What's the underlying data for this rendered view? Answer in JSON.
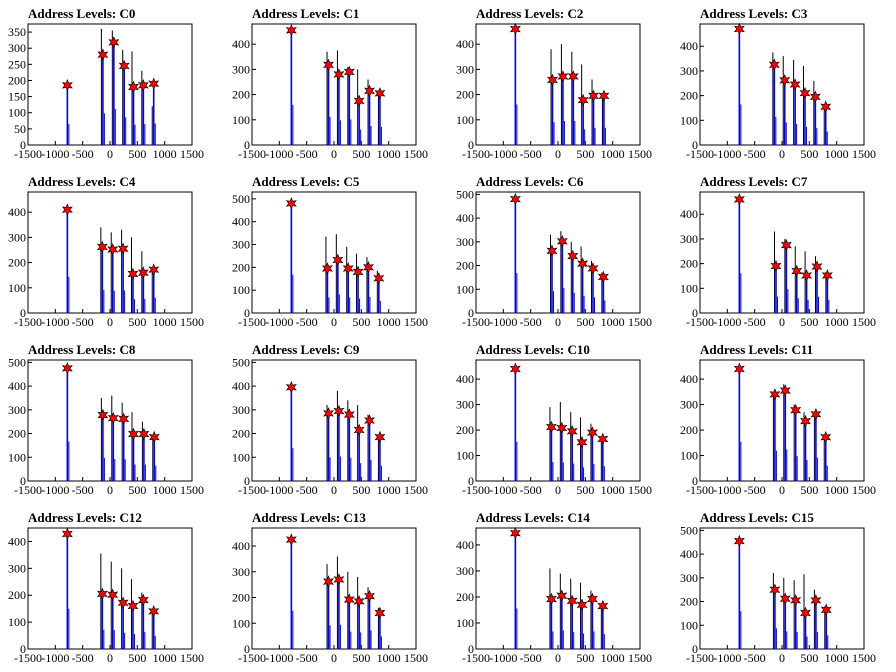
{
  "colors": {
    "peak": "#0000ff",
    "black_peak": "#000000",
    "marker": "#ff0000",
    "frame": "#000000"
  },
  "chart_data": [
    {
      "type": "bar",
      "title": "Address Levels: C0",
      "xlim": [
        -1500,
        1500
      ],
      "ylim": [
        0,
        375
      ],
      "xticks": [
        -1500,
        -1000,
        -500,
        0,
        500,
        1000,
        1500
      ],
      "yticks": [
        0,
        50,
        100,
        150,
        200,
        250,
        300,
        350
      ],
      "markers": [
        {
          "x": -780,
          "y": 185
        },
        {
          "x": -130,
          "y": 280
        },
        {
          "x": 70,
          "y": 318
        },
        {
          "x": 260,
          "y": 245
        },
        {
          "x": 430,
          "y": 180
        },
        {
          "x": 610,
          "y": 185
        },
        {
          "x": 800,
          "y": 190
        }
      ],
      "black_peaks": [
        {
          "x": -130,
          "y": 360
        },
        {
          "x": 70,
          "y": 355
        },
        {
          "x": 260,
          "y": 295
        },
        {
          "x": 430,
          "y": 290
        },
        {
          "x": 610,
          "y": 230
        },
        {
          "x": 800,
          "y": 120
        }
      ]
    },
    {
      "type": "bar",
      "title": "Address Levels: C1",
      "xlim": [
        -1500,
        1500
      ],
      "ylim": [
        0,
        480
      ],
      "xticks": [
        -1500,
        -1000,
        -500,
        0,
        500,
        1000,
        1500
      ],
      "yticks": [
        0,
        100,
        200,
        300,
        400
      ],
      "markers": [
        {
          "x": -780,
          "y": 455
        },
        {
          "x": -100,
          "y": 318
        },
        {
          "x": 90,
          "y": 280
        },
        {
          "x": 280,
          "y": 290
        },
        {
          "x": 460,
          "y": 175
        },
        {
          "x": 650,
          "y": 215
        },
        {
          "x": 840,
          "y": 205
        }
      ],
      "black_peaks": [
        {
          "x": -100,
          "y": 370
        },
        {
          "x": 90,
          "y": 375
        },
        {
          "x": 280,
          "y": 310
        },
        {
          "x": 460,
          "y": 300
        },
        {
          "x": 650,
          "y": 260
        },
        {
          "x": 840,
          "y": 210
        }
      ]
    },
    {
      "type": "bar",
      "title": "Address Levels: C2",
      "xlim": [
        -1500,
        1500
      ],
      "ylim": [
        0,
        480
      ],
      "xticks": [
        -1500,
        -1000,
        -500,
        0,
        500,
        1000,
        1500
      ],
      "yticks": [
        0,
        100,
        200,
        300,
        400
      ],
      "markers": [
        {
          "x": -780,
          "y": 460
        },
        {
          "x": -100,
          "y": 258
        },
        {
          "x": 90,
          "y": 272
        },
        {
          "x": 280,
          "y": 272
        },
        {
          "x": 460,
          "y": 178
        },
        {
          "x": 650,
          "y": 195
        },
        {
          "x": 840,
          "y": 195
        }
      ],
      "black_peaks": [
        {
          "x": -100,
          "y": 380
        },
        {
          "x": 90,
          "y": 400
        },
        {
          "x": 280,
          "y": 370
        },
        {
          "x": 460,
          "y": 320
        },
        {
          "x": 650,
          "y": 260
        },
        {
          "x": 840,
          "y": 200
        }
      ]
    },
    {
      "type": "bar",
      "title": "Address Levels: C3",
      "xlim": [
        -1500,
        1500
      ],
      "ylim": [
        0,
        490
      ],
      "xticks": [
        -1500,
        -1000,
        -500,
        0,
        500,
        1000,
        1500
      ],
      "yticks": [
        0,
        100,
        200,
        300,
        400
      ],
      "markers": [
        {
          "x": -780,
          "y": 470
        },
        {
          "x": -140,
          "y": 325
        },
        {
          "x": 50,
          "y": 262
        },
        {
          "x": 240,
          "y": 245
        },
        {
          "x": 420,
          "y": 210
        },
        {
          "x": 610,
          "y": 195
        },
        {
          "x": 800,
          "y": 155
        }
      ],
      "black_peaks": [
        {
          "x": -140,
          "y": 375
        },
        {
          "x": 50,
          "y": 360
        },
        {
          "x": 240,
          "y": 345
        },
        {
          "x": 420,
          "y": 320
        },
        {
          "x": 610,
          "y": 260
        },
        {
          "x": 800,
          "y": 160
        }
      ]
    },
    {
      "type": "bar",
      "title": "Address Levels: C4",
      "xlim": [
        -1500,
        1500
      ],
      "ylim": [
        0,
        480
      ],
      "xticks": [
        -1500,
        -1000,
        -500,
        0,
        500,
        1000,
        1500
      ],
      "yticks": [
        0,
        100,
        200,
        300,
        400
      ],
      "markers": [
        {
          "x": -780,
          "y": 410
        },
        {
          "x": -140,
          "y": 262
        },
        {
          "x": 50,
          "y": 252
        },
        {
          "x": 240,
          "y": 255
        },
        {
          "x": 420,
          "y": 155
        },
        {
          "x": 610,
          "y": 160
        },
        {
          "x": 800,
          "y": 172
        }
      ],
      "black_peaks": [
        {
          "x": -140,
          "y": 340
        },
        {
          "x": 50,
          "y": 320
        },
        {
          "x": 240,
          "y": 330
        },
        {
          "x": 420,
          "y": 300
        },
        {
          "x": 610,
          "y": 245
        },
        {
          "x": 800,
          "y": 180
        }
      ]
    },
    {
      "type": "bar",
      "title": "Address Levels: C5",
      "xlim": [
        -1500,
        1500
      ],
      "ylim": [
        0,
        530
      ],
      "xticks": [
        -1500,
        -1000,
        -500,
        0,
        500,
        1000,
        1500
      ],
      "yticks": [
        0,
        100,
        200,
        300,
        400,
        500
      ],
      "markers": [
        {
          "x": -780,
          "y": 480
        },
        {
          "x": -120,
          "y": 195
        },
        {
          "x": 70,
          "y": 232
        },
        {
          "x": 260,
          "y": 195
        },
        {
          "x": 440,
          "y": 180
        },
        {
          "x": 630,
          "y": 200
        },
        {
          "x": 820,
          "y": 152
        }
      ],
      "black_peaks": [
        {
          "x": -120,
          "y": 335
        },
        {
          "x": 70,
          "y": 345
        },
        {
          "x": 260,
          "y": 290
        },
        {
          "x": 440,
          "y": 260
        },
        {
          "x": 630,
          "y": 245
        },
        {
          "x": 820,
          "y": 185
        }
      ]
    },
    {
      "type": "bar",
      "title": "Address Levels: C6",
      "xlim": [
        -1500,
        1500
      ],
      "ylim": [
        0,
        510
      ],
      "xticks": [
        -1500,
        -1000,
        -500,
        0,
        500,
        1000,
        1500
      ],
      "yticks": [
        0,
        100,
        200,
        300,
        400,
        500
      ],
      "markers": [
        {
          "x": -780,
          "y": 480
        },
        {
          "x": -110,
          "y": 262
        },
        {
          "x": 80,
          "y": 302
        },
        {
          "x": 270,
          "y": 240
        },
        {
          "x": 450,
          "y": 208
        },
        {
          "x": 640,
          "y": 188
        },
        {
          "x": 830,
          "y": 152
        }
      ],
      "black_peaks": [
        {
          "x": -110,
          "y": 330
        },
        {
          "x": 80,
          "y": 345
        },
        {
          "x": 270,
          "y": 300
        },
        {
          "x": 450,
          "y": 280
        },
        {
          "x": 640,
          "y": 220
        },
        {
          "x": 830,
          "y": 170
        }
      ]
    },
    {
      "type": "bar",
      "title": "Address Levels: C7",
      "xlim": [
        -1500,
        1500
      ],
      "ylim": [
        0,
        490
      ],
      "xticks": [
        -1500,
        -1000,
        -500,
        0,
        500,
        1000,
        1500
      ],
      "yticks": [
        0,
        100,
        200,
        300,
        400
      ],
      "markers": [
        {
          "x": -780,
          "y": 460
        },
        {
          "x": -110,
          "y": 190
        },
        {
          "x": 80,
          "y": 275
        },
        {
          "x": 270,
          "y": 170
        },
        {
          "x": 450,
          "y": 152
        },
        {
          "x": 640,
          "y": 188
        },
        {
          "x": 830,
          "y": 152
        }
      ],
      "black_peaks": [
        {
          "x": -110,
          "y": 330
        },
        {
          "x": 80,
          "y": 300
        },
        {
          "x": 270,
          "y": 270
        },
        {
          "x": 450,
          "y": 250
        },
        {
          "x": 640,
          "y": 230
        },
        {
          "x": 830,
          "y": 165
        }
      ]
    },
    {
      "type": "bar",
      "title": "Address Levels: C8",
      "xlim": [
        -1500,
        1500
      ],
      "ylim": [
        0,
        510
      ],
      "xticks": [
        -1500,
        -1000,
        -500,
        0,
        500,
        1000,
        1500
      ],
      "yticks": [
        0,
        100,
        200,
        300,
        400,
        500
      ],
      "markers": [
        {
          "x": -780,
          "y": 475
        },
        {
          "x": -130,
          "y": 278
        },
        {
          "x": 60,
          "y": 265
        },
        {
          "x": 250,
          "y": 262
        },
        {
          "x": 430,
          "y": 198
        },
        {
          "x": 620,
          "y": 198
        },
        {
          "x": 810,
          "y": 185
        }
      ],
      "black_peaks": [
        {
          "x": -130,
          "y": 350
        },
        {
          "x": 60,
          "y": 360
        },
        {
          "x": 250,
          "y": 330
        },
        {
          "x": 430,
          "y": 290
        },
        {
          "x": 620,
          "y": 250
        },
        {
          "x": 810,
          "y": 190
        }
      ]
    },
    {
      "type": "bar",
      "title": "Address Levels: C9",
      "xlim": [
        -1500,
        1500
      ],
      "ylim": [
        0,
        510
      ],
      "xticks": [
        -1500,
        -1000,
        -500,
        0,
        500,
        1000,
        1500
      ],
      "yticks": [
        0,
        100,
        200,
        300,
        400,
        500
      ],
      "markers": [
        {
          "x": -780,
          "y": 395
        },
        {
          "x": -100,
          "y": 285
        },
        {
          "x": 90,
          "y": 295
        },
        {
          "x": 280,
          "y": 280
        },
        {
          "x": 460,
          "y": 215
        },
        {
          "x": 650,
          "y": 255
        },
        {
          "x": 840,
          "y": 185
        }
      ],
      "black_peaks": [
        {
          "x": -100,
          "y": 320
        },
        {
          "x": 90,
          "y": 380
        },
        {
          "x": 280,
          "y": 340
        },
        {
          "x": 460,
          "y": 320
        },
        {
          "x": 650,
          "y": 280
        },
        {
          "x": 840,
          "y": 190
        }
      ]
    },
    {
      "type": "bar",
      "title": "Address Levels: C10",
      "xlim": [
        -1500,
        1500
      ],
      "ylim": [
        0,
        475
      ],
      "xticks": [
        -1500,
        -1000,
        -500,
        0,
        500,
        1000,
        1500
      ],
      "yticks": [
        0,
        100,
        200,
        300,
        400
      ],
      "markers": [
        {
          "x": -780,
          "y": 440
        },
        {
          "x": -120,
          "y": 212
        },
        {
          "x": 70,
          "y": 208
        },
        {
          "x": 260,
          "y": 195
        },
        {
          "x": 440,
          "y": 152
        },
        {
          "x": 630,
          "y": 190
        },
        {
          "x": 820,
          "y": 165
        }
      ],
      "black_peaks": [
        {
          "x": -120,
          "y": 290
        },
        {
          "x": 70,
          "y": 310
        },
        {
          "x": 260,
          "y": 270
        },
        {
          "x": 440,
          "y": 250
        },
        {
          "x": 630,
          "y": 225
        },
        {
          "x": 820,
          "y": 170
        }
      ]
    },
    {
      "type": "bar",
      "title": "Address Levels: C11",
      "xlim": [
        -1500,
        1500
      ],
      "ylim": [
        0,
        475
      ],
      "xticks": [
        -1500,
        -1000,
        -500,
        0,
        500,
        1000,
        1500
      ],
      "yticks": [
        0,
        100,
        200,
        300,
        400
      ],
      "markers": [
        {
          "x": -780,
          "y": 440
        },
        {
          "x": -130,
          "y": 340
        },
        {
          "x": 60,
          "y": 355
        },
        {
          "x": 250,
          "y": 278
        },
        {
          "x": 430,
          "y": 235
        },
        {
          "x": 620,
          "y": 262
        },
        {
          "x": 800,
          "y": 172
        }
      ],
      "black_peaks": [
        {
          "x": -130,
          "y": 345
        },
        {
          "x": 60,
          "y": 380
        },
        {
          "x": 250,
          "y": 300
        },
        {
          "x": 430,
          "y": 270
        },
        {
          "x": 620,
          "y": 265
        },
        {
          "x": 800,
          "y": 175
        }
      ]
    },
    {
      "type": "bar",
      "title": "Address Levels: C12",
      "xlim": [
        -1500,
        1500
      ],
      "ylim": [
        0,
        450
      ],
      "xticks": [
        -1500,
        -1000,
        -500,
        0,
        500,
        1000,
        1500
      ],
      "yticks": [
        0,
        100,
        200,
        300,
        400
      ],
      "markers": [
        {
          "x": -780,
          "y": 428
        },
        {
          "x": -140,
          "y": 205
        },
        {
          "x": 50,
          "y": 202
        },
        {
          "x": 240,
          "y": 172
        },
        {
          "x": 420,
          "y": 160
        },
        {
          "x": 610,
          "y": 182
        },
        {
          "x": 800,
          "y": 140
        }
      ],
      "black_peaks": [
        {
          "x": -140,
          "y": 355
        },
        {
          "x": 50,
          "y": 325
        },
        {
          "x": 240,
          "y": 300
        },
        {
          "x": 420,
          "y": 260
        },
        {
          "x": 610,
          "y": 210
        },
        {
          "x": 800,
          "y": 150
        }
      ]
    },
    {
      "type": "bar",
      "title": "Address Levels: C13",
      "xlim": [
        -1500,
        1500
      ],
      "ylim": [
        0,
        470
      ],
      "xticks": [
        -1500,
        -1000,
        -500,
        0,
        500,
        1000,
        1500
      ],
      "yticks": [
        0,
        100,
        200,
        300,
        400
      ],
      "markers": [
        {
          "x": -780,
          "y": 425
        },
        {
          "x": -100,
          "y": 262
        },
        {
          "x": 90,
          "y": 270
        },
        {
          "x": 280,
          "y": 192
        },
        {
          "x": 460,
          "y": 185
        },
        {
          "x": 650,
          "y": 205
        },
        {
          "x": 840,
          "y": 140
        }
      ],
      "black_peaks": [
        {
          "x": -100,
          "y": 330
        },
        {
          "x": 90,
          "y": 360
        },
        {
          "x": 280,
          "y": 300
        },
        {
          "x": 460,
          "y": 280
        },
        {
          "x": 650,
          "y": 240
        },
        {
          "x": 840,
          "y": 160
        }
      ]
    },
    {
      "type": "bar",
      "title": "Address Levels: C14",
      "xlim": [
        -1500,
        1500
      ],
      "ylim": [
        0,
        465
      ],
      "xticks": [
        -1500,
        -1000,
        -500,
        0,
        500,
        1000,
        1500
      ],
      "yticks": [
        0,
        100,
        200,
        300,
        400
      ],
      "markers": [
        {
          "x": -780,
          "y": 445
        },
        {
          "x": -120,
          "y": 192
        },
        {
          "x": 70,
          "y": 205
        },
        {
          "x": 260,
          "y": 185
        },
        {
          "x": 440,
          "y": 170
        },
        {
          "x": 630,
          "y": 192
        },
        {
          "x": 820,
          "y": 165
        }
      ],
      "black_peaks": [
        {
          "x": -120,
          "y": 310
        },
        {
          "x": 70,
          "y": 290
        },
        {
          "x": 260,
          "y": 270
        },
        {
          "x": 440,
          "y": 255
        },
        {
          "x": 630,
          "y": 225
        },
        {
          "x": 820,
          "y": 175
        }
      ]
    },
    {
      "type": "bar",
      "title": "Address Levels: C15",
      "xlim": [
        -1500,
        1500
      ],
      "ylim": [
        0,
        510
      ],
      "xticks": [
        -1500,
        -1000,
        -500,
        0,
        500,
        1000,
        1500
      ],
      "yticks": [
        0,
        100,
        200,
        300,
        400,
        500
      ],
      "markers": [
        {
          "x": -780,
          "y": 455
        },
        {
          "x": -130,
          "y": 250
        },
        {
          "x": 60,
          "y": 212
        },
        {
          "x": 250,
          "y": 205
        },
        {
          "x": 430,
          "y": 152
        },
        {
          "x": 620,
          "y": 205
        },
        {
          "x": 810,
          "y": 165
        }
      ],
      "black_peaks": [
        {
          "x": -130,
          "y": 320
        },
        {
          "x": 60,
          "y": 300
        },
        {
          "x": 250,
          "y": 290
        },
        {
          "x": 430,
          "y": 315
        },
        {
          "x": 620,
          "y": 250
        },
        {
          "x": 810,
          "y": 180
        }
      ]
    }
  ]
}
